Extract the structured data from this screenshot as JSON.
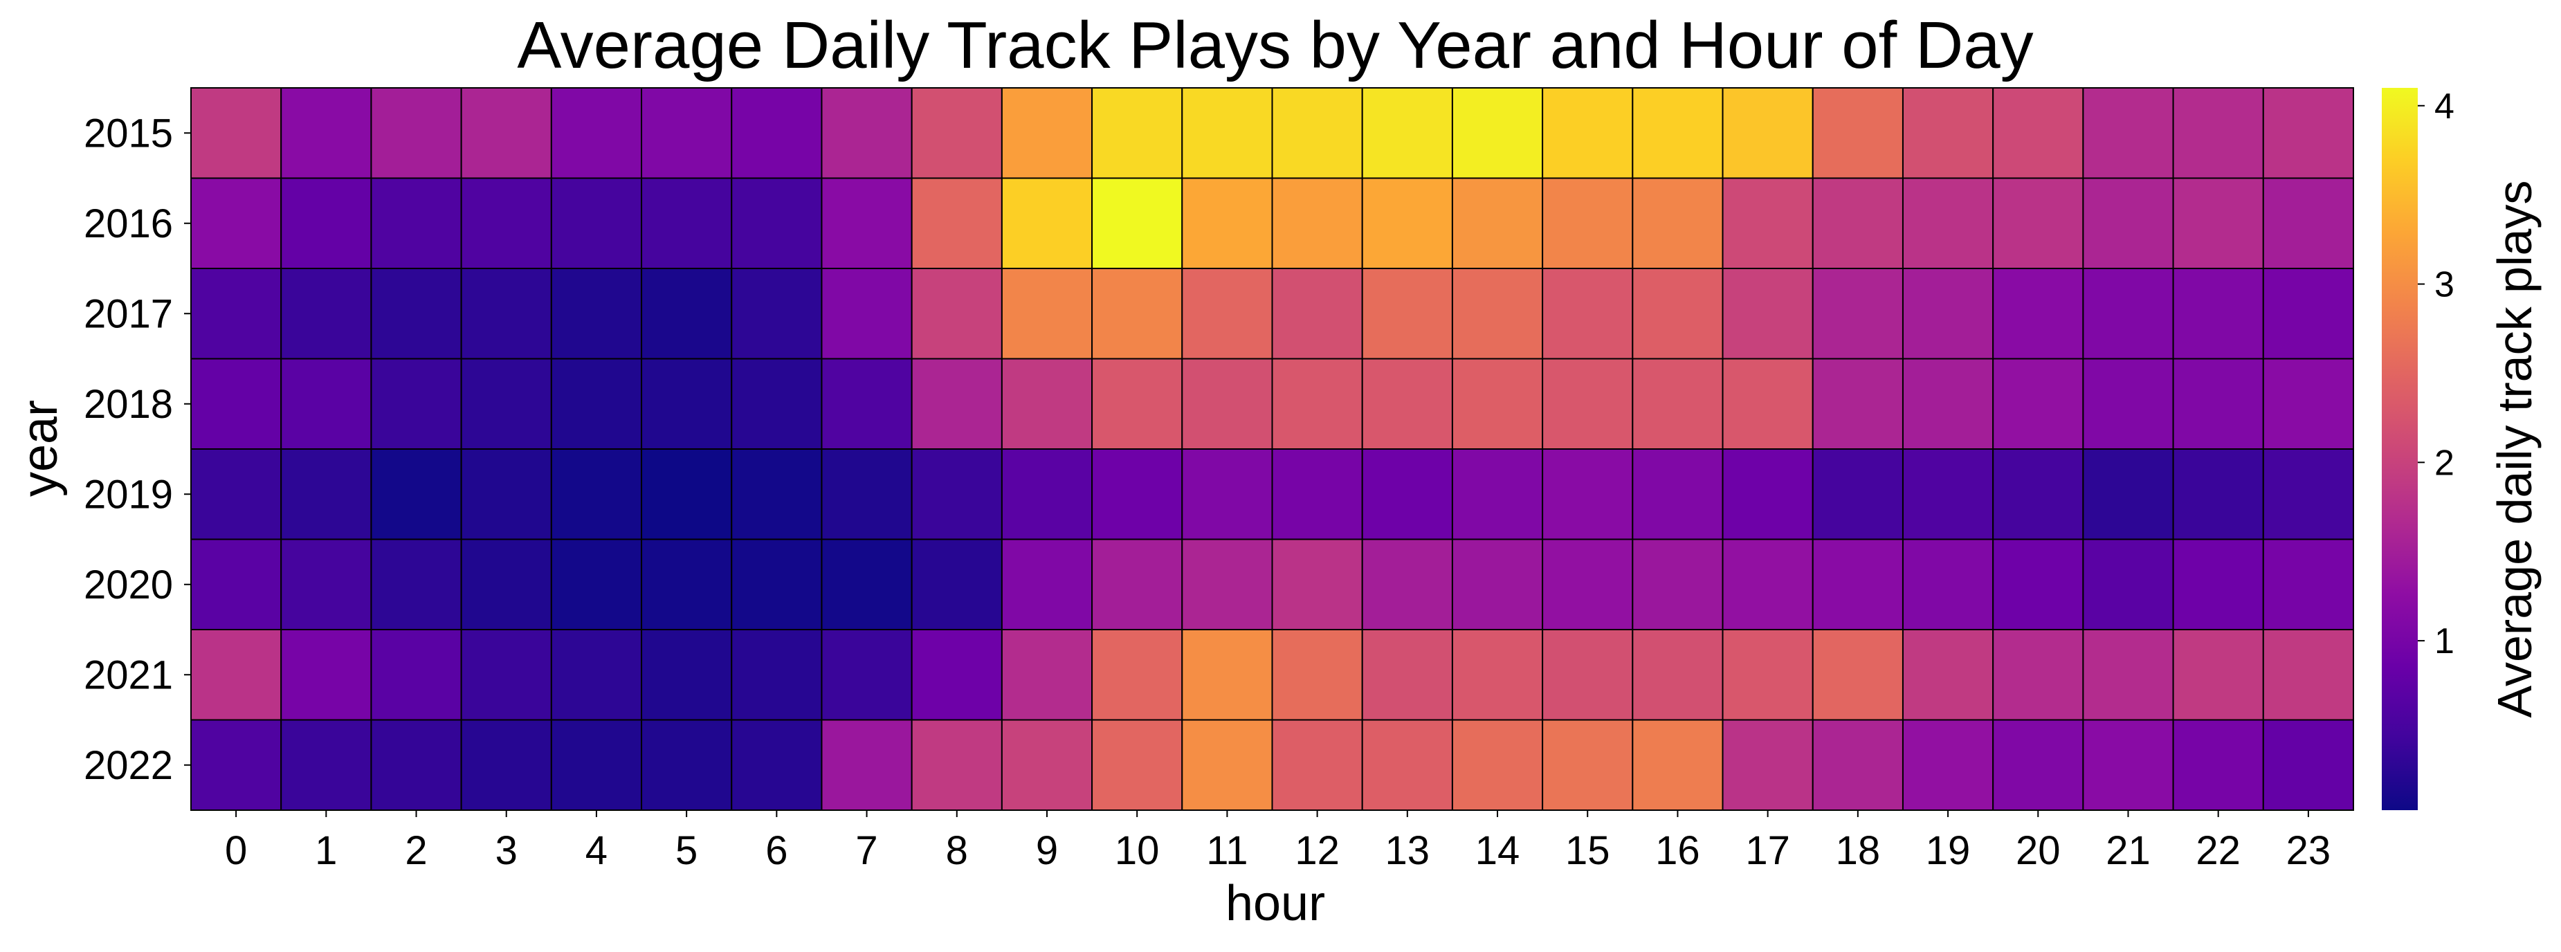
{
  "chart_data": {
    "type": "heatmap",
    "title": "Average Daily Track Plays by Year and Hour of Day",
    "xlabel": "hour",
    "ylabel": "year",
    "x_categories": [
      "0",
      "1",
      "2",
      "3",
      "4",
      "5",
      "6",
      "7",
      "8",
      "9",
      "10",
      "11",
      "12",
      "13",
      "14",
      "15",
      "16",
      "17",
      "18",
      "19",
      "20",
      "21",
      "22",
      "23"
    ],
    "y_categories": [
      "2015",
      "2016",
      "2017",
      "2018",
      "2019",
      "2020",
      "2021",
      "2022"
    ],
    "values": [
      [
        1.9,
        1.2,
        1.5,
        1.6,
        1.1,
        1.1,
        1.0,
        1.6,
        2.2,
        3.2,
        3.8,
        3.8,
        3.8,
        3.9,
        4.0,
        3.7,
        3.7,
        3.6,
        2.6,
        2.2,
        2.1,
        1.7,
        1.7,
        1.8
      ],
      [
        1.2,
        0.8,
        0.6,
        0.6,
        0.5,
        0.5,
        0.5,
        1.2,
        2.5,
        3.7,
        4.1,
        3.3,
        3.2,
        3.3,
        3.1,
        2.9,
        2.9,
        2.1,
        1.9,
        1.8,
        1.8,
        1.6,
        1.7,
        1.5
      ],
      [
        0.6,
        0.4,
        0.3,
        0.3,
        0.2,
        0.15,
        0.3,
        1.1,
        2.0,
        2.9,
        2.9,
        2.5,
        2.2,
        2.6,
        2.6,
        2.3,
        2.4,
        2.0,
        1.6,
        1.5,
        1.2,
        1.1,
        1.1,
        1.0
      ],
      [
        0.8,
        0.7,
        0.4,
        0.3,
        0.2,
        0.2,
        0.25,
        0.6,
        1.6,
        1.9,
        2.3,
        2.2,
        2.3,
        2.3,
        2.4,
        2.3,
        2.3,
        2.3,
        1.6,
        1.5,
        1.3,
        1.1,
        1.1,
        1.2
      ],
      [
        0.4,
        0.3,
        0.1,
        0.2,
        0.1,
        0.05,
        0.1,
        0.2,
        0.4,
        0.7,
        0.9,
        1.1,
        1.0,
        0.9,
        1.1,
        1.2,
        1.1,
        0.9,
        0.5,
        0.6,
        0.5,
        0.3,
        0.4,
        0.5
      ],
      [
        0.7,
        0.5,
        0.3,
        0.2,
        0.1,
        0.1,
        0.1,
        0.1,
        0.25,
        1.1,
        1.5,
        1.6,
        1.8,
        1.5,
        1.4,
        1.3,
        1.4,
        1.3,
        1.2,
        1.1,
        0.9,
        0.7,
        0.9,
        1.0
      ],
      [
        1.8,
        1.0,
        0.7,
        0.4,
        0.3,
        0.2,
        0.25,
        0.4,
        0.9,
        1.7,
        2.5,
        3.0,
        2.6,
        2.2,
        2.3,
        2.2,
        2.2,
        2.3,
        2.5,
        1.9,
        1.7,
        1.7,
        1.9,
        1.9
      ],
      [
        0.6,
        0.4,
        0.35,
        0.25,
        0.2,
        0.2,
        0.25,
        1.4,
        1.9,
        2.0,
        2.5,
        3.0,
        2.4,
        2.4,
        2.6,
        2.7,
        2.8,
        1.8,
        1.6,
        1.3,
        1.1,
        1.2,
        1.0,
        0.8
      ]
    ],
    "colormap": "plasma",
    "colorbar": {
      "label": "Average daily track plays",
      "ticks": [
        1,
        2,
        3,
        4
      ],
      "range": [
        0.05,
        4.1
      ]
    },
    "grid": false,
    "legend": "colorbar-right"
  }
}
